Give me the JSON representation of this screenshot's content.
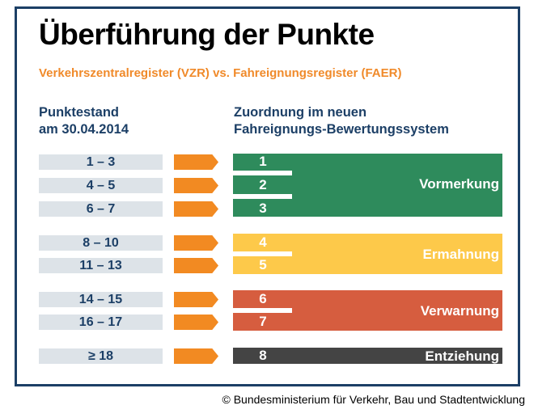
{
  "title": "Überführung der Punkte",
  "subtitle": "Verkehrszentralregister (VZR) vs. Fahreignungsregister (FAER)",
  "left_header": [
    "Punktestand",
    "am 30.04.2014"
  ],
  "right_header": [
    "Zuordnung im neuen",
    "Fahreignungs-Bewertungssystem"
  ],
  "rows": [
    {
      "range": "1 – 3",
      "points": "1"
    },
    {
      "range": "4 – 5",
      "points": "2"
    },
    {
      "range": "6 – 7",
      "points": "3"
    },
    {
      "range": "8 – 10",
      "points": "4"
    },
    {
      "range": "11 – 13",
      "points": "5"
    },
    {
      "range": "14 – 15",
      "points": "6"
    },
    {
      "range": "16 – 17",
      "points": "7"
    },
    {
      "range": "≥ 18",
      "points": "8"
    }
  ],
  "groups": [
    {
      "label": "Vormerkung",
      "color": "#2e8b5c"
    },
    {
      "label": "Ermahnung",
      "color": "#fdc94a"
    },
    {
      "label": "Verwarnung",
      "color": "#d65d3f"
    },
    {
      "label": "Entziehung",
      "color": "#444444"
    }
  ],
  "colors": {
    "arrow": "#f28a22",
    "pill": "#dde3e8",
    "navy": "#1c3f66",
    "orange_text": "#f08a2a"
  },
  "copyright": "© Bundesministerium für Verkehr, Bau und Stadtentwicklung"
}
